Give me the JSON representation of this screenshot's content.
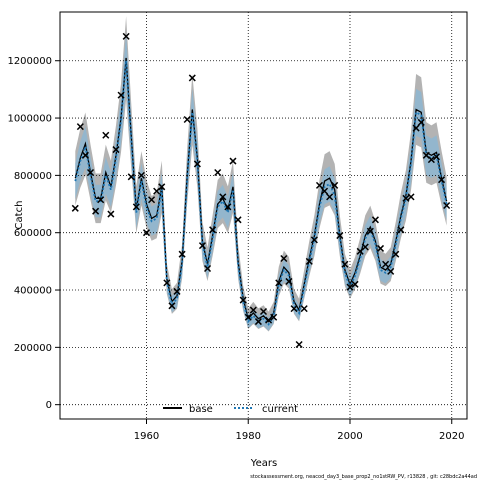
{
  "chart_data": {
    "type": "line",
    "xlabel": "Years",
    "ylabel": "Catch",
    "xlim": [
      1943,
      2023
    ],
    "ylim": [
      -50000,
      1370000
    ],
    "x_ticks": [
      1960,
      1980,
      2000,
      2020
    ],
    "y_ticks": [
      0,
      200000,
      400000,
      600000,
      800000,
      1000000,
      1200000
    ],
    "x_tick_labels": [
      "1960",
      "1980",
      "2000",
      "2020"
    ],
    "y_tick_labels": [
      "0",
      "200000",
      "400000",
      "600000",
      "800000",
      "1000000",
      "1200000"
    ],
    "grid": true,
    "legend_position": "bottom",
    "footnote": "stockassessment.org, neacod_day3_base_prop2_no1stRW_PV, r13828 , git: c28bdc2a44ad",
    "colors": {
      "base_line": "#000000",
      "current_line": "#1f77b4",
      "band_base": "#a6a6a6",
      "band_current": "#8fb6cf",
      "observed": "#000000"
    },
    "series": [
      {
        "name": "base",
        "style": "solid",
        "x": [
          1946,
          1947,
          1948,
          1949,
          1950,
          1951,
          1952,
          1953,
          1954,
          1955,
          1956,
          1957,
          1958,
          1959,
          1960,
          1961,
          1962,
          1963,
          1964,
          1965,
          1966,
          1967,
          1968,
          1969,
          1970,
          1971,
          1972,
          1973,
          1974,
          1975,
          1976,
          1977,
          1978,
          1979,
          1980,
          1981,
          1982,
          1983,
          1984,
          1985,
          1986,
          1987,
          1988,
          1989,
          1990,
          1991,
          1992,
          1993,
          1994,
          1995,
          1996,
          1997,
          1998,
          1999,
          2000,
          2001,
          2002,
          2003,
          2004,
          2005,
          2006,
          2007,
          2008,
          2009,
          2010,
          2011,
          2012,
          2013,
          2014,
          2015,
          2016,
          2017,
          2018,
          2019
        ],
        "values": [
          790000,
          860000,
          910000,
          810000,
          720000,
          720000,
          810000,
          760000,
          870000,
          1000000,
          1210000,
          940000,
          680000,
          790000,
          700000,
          650000,
          660000,
          760000,
          440000,
          360000,
          380000,
          500000,
          800000,
          1030000,
          860000,
          570000,
          490000,
          590000,
          700000,
          720000,
          680000,
          760000,
          500000,
          370000,
          300000,
          320000,
          300000,
          310000,
          290000,
          320000,
          430000,
          480000,
          460000,
          360000,
          330000,
          420000,
          510000,
          590000,
          700000,
          780000,
          790000,
          750000,
          590000,
          470000,
          420000,
          460000,
          520000,
          590000,
          620000,
          570000,
          480000,
          470000,
          490000,
          570000,
          660000,
          730000,
          850000,
          1030000,
          1020000,
          880000,
          870000,
          880000,
          790000,
          710000
        ]
      },
      {
        "name": "current",
        "style": "dotted",
        "x": [
          1946,
          1947,
          1948,
          1949,
          1950,
          1951,
          1952,
          1953,
          1954,
          1955,
          1956,
          1957,
          1958,
          1959,
          1960,
          1961,
          1962,
          1963,
          1964,
          1965,
          1966,
          1967,
          1968,
          1969,
          1970,
          1971,
          1972,
          1973,
          1974,
          1975,
          1976,
          1977,
          1978,
          1979,
          1980,
          1981,
          1982,
          1983,
          1984,
          1985,
          1986,
          1987,
          1988,
          1989,
          1990,
          1991,
          1992,
          1993,
          1994,
          1995,
          1996,
          1997,
          1998,
          1999,
          2000,
          2001,
          2002,
          2003,
          2004,
          2005,
          2006,
          2007,
          2008,
          2009,
          2010,
          2011,
          2012,
          2013,
          2014,
          2015,
          2016,
          2017,
          2018,
          2019
        ],
        "values": [
          780000,
          850000,
          900000,
          800000,
          710000,
          710000,
          800000,
          750000,
          860000,
          990000,
          1200000,
          930000,
          670000,
          780000,
          690000,
          640000,
          650000,
          750000,
          430000,
          350000,
          370000,
          490000,
          790000,
          1020000,
          850000,
          560000,
          480000,
          580000,
          690000,
          710000,
          670000,
          750000,
          490000,
          360000,
          290000,
          310000,
          290000,
          300000,
          280000,
          310000,
          420000,
          470000,
          450000,
          350000,
          320000,
          410000,
          500000,
          580000,
          690000,
          760000,
          770000,
          730000,
          580000,
          460000,
          410000,
          450000,
          510000,
          580000,
          610000,
          560000,
          470000,
          460000,
          480000,
          560000,
          650000,
          720000,
          840000,
          1020000,
          1010000,
          870000,
          860000,
          870000,
          780000,
          700000
        ]
      }
    ],
    "observed": {
      "x": [
        1946,
        1947,
        1948,
        1949,
        1950,
        1951,
        1952,
        1953,
        1954,
        1955,
        1956,
        1957,
        1958,
        1959,
        1960,
        1961,
        1962,
        1963,
        1964,
        1965,
        1966,
        1967,
        1968,
        1969,
        1970,
        1971,
        1972,
        1973,
        1974,
        1975,
        1976,
        1977,
        1978,
        1979,
        1980,
        1981,
        1982,
        1983,
        1984,
        1985,
        1986,
        1987,
        1988,
        1989,
        1990,
        1991,
        1992,
        1993,
        1994,
        1995,
        1996,
        1997,
        1998,
        1999,
        2000,
        2001,
        2002,
        2003,
        2004,
        2005,
        2006,
        2007,
        2008,
        2009,
        2010,
        2011,
        2012,
        2013,
        2014,
        2015,
        2016,
        2017,
        2018,
        2019
      ],
      "values": [
        685000,
        970000,
        870000,
        810000,
        675000,
        715000,
        940000,
        665000,
        890000,
        1080000,
        1285000,
        795000,
        690000,
        800000,
        600000,
        715000,
        745000,
        760000,
        425000,
        345000,
        395000,
        525000,
        995000,
        1140000,
        840000,
        555000,
        475000,
        610000,
        810000,
        725000,
        690000,
        850000,
        645000,
        365000,
        305000,
        330000,
        290000,
        325000,
        295000,
        305000,
        425000,
        510000,
        430000,
        335000,
        210000,
        335000,
        500000,
        575000,
        765000,
        745000,
        725000,
        765000,
        590000,
        490000,
        410000,
        420000,
        535000,
        550000,
        605000,
        645000,
        545000,
        490000,
        465000,
        525000,
        610000,
        720000,
        725000,
        965000,
        985000,
        870000,
        855000,
        865000,
        785000,
        695000
      ]
    }
  }
}
